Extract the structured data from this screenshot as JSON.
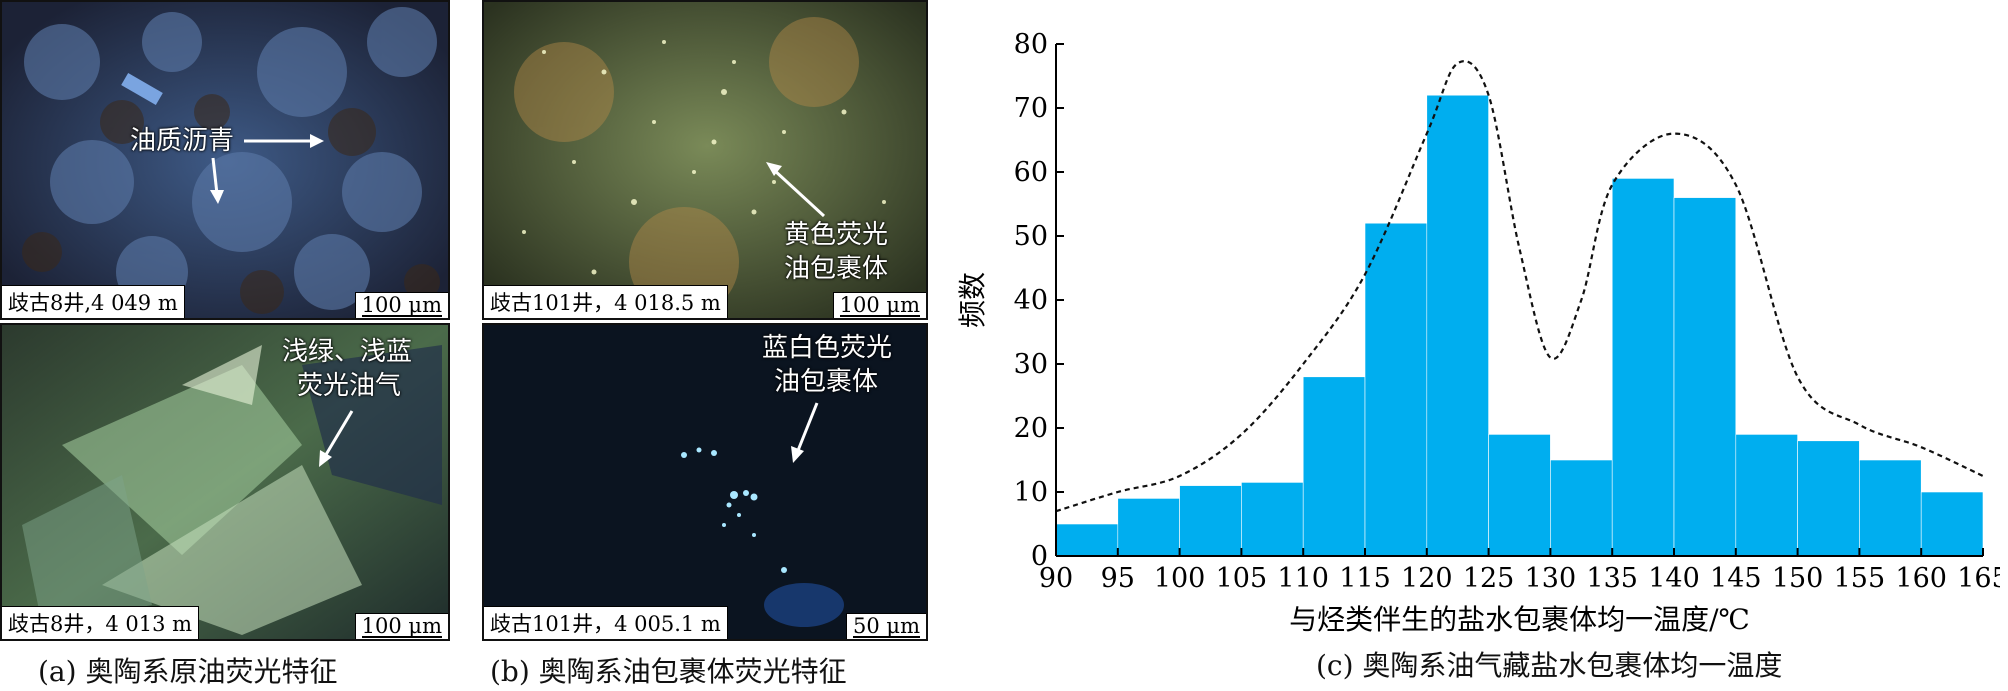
{
  "panel_a": {
    "top": {
      "label": "油质沥青",
      "location": "歧古8井,4 049 m",
      "scale": "100 μm"
    },
    "bottom": {
      "label_line1": "浅绿、浅蓝",
      "label_line2": "荧光油气",
      "location": "歧古8井，4 013 m",
      "scale": "100 μm"
    },
    "caption": "(a) 奥陶系原油荧光特征"
  },
  "panel_b": {
    "top": {
      "label_line1": "黄色荧光",
      "label_line2": "油包裹体",
      "location": "歧古101井，4 018.5 m",
      "scale": "100 μm"
    },
    "bottom": {
      "label_line1": "蓝白色荧光",
      "label_line2": "油包裹体",
      "location": "歧古101井，4 005.1 m",
      "scale": "50 μm"
    },
    "caption": "(b) 奥陶系油包裹体荧光特征"
  },
  "panel_c": {
    "caption": "(c) 奥陶系油气藏盐水包裹体均一温度"
  },
  "colors": {
    "bar": "#00aeef",
    "curve": "#111111"
  },
  "chart_data": {
    "type": "bar",
    "title": "",
    "xlabel": "与烃类伴生的盐水包裹体均一温度/℃",
    "ylabel": "频数",
    "bin_edges": [
      90,
      95,
      100,
      105,
      110,
      115,
      120,
      125,
      130,
      135,
      140,
      145,
      150,
      155,
      160,
      165
    ],
    "values": [
      5,
      9,
      11,
      11.5,
      28,
      52,
      72,
      19,
      15,
      59,
      56,
      19,
      18,
      15,
      10
    ],
    "xlim": [
      90,
      165
    ],
    "ylim": [
      0,
      80
    ],
    "xticks": [
      90,
      95,
      100,
      105,
      110,
      115,
      120,
      125,
      130,
      135,
      140,
      145,
      150,
      155,
      160,
      165
    ],
    "yticks": [
      0,
      10,
      20,
      30,
      40,
      50,
      60,
      70,
      80
    ],
    "envelope": {
      "style": "dashed",
      "x": [
        90,
        95,
        100,
        105,
        110,
        115,
        120,
        122.5,
        125,
        127.5,
        130,
        132.5,
        135,
        140,
        145,
        150,
        155,
        160,
        165
      ],
      "y": [
        7,
        10,
        12.5,
        19,
        30,
        44,
        66,
        77,
        72,
        48,
        31,
        40,
        58,
        66,
        58,
        28,
        20.5,
        17,
        12.5
      ]
    },
    "grid": false,
    "legend": "none"
  }
}
